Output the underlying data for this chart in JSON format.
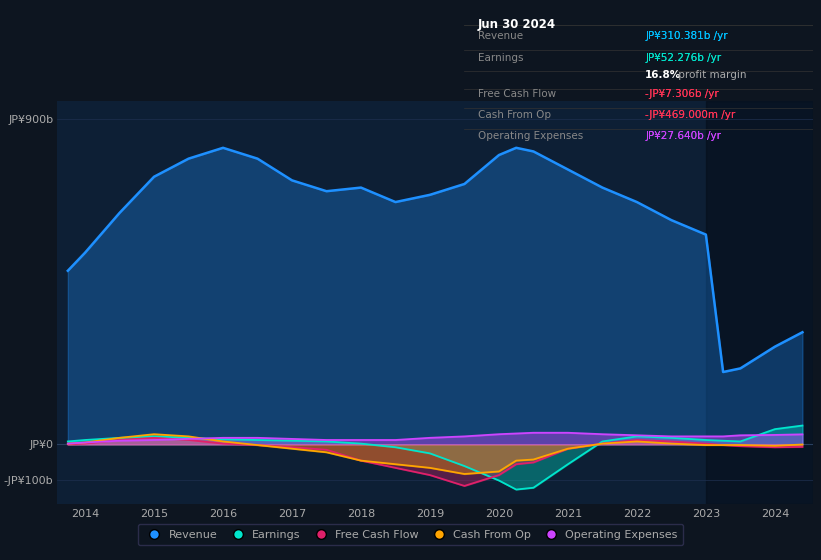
{
  "bg_color": "#0d1520",
  "plot_bg_color": "#0d1f35",
  "title_box_bg": "#000000",
  "title_box_border": "#333333",
  "years": [
    2013.75,
    2014.0,
    2014.5,
    2015.0,
    2015.5,
    2016.0,
    2016.5,
    2017.0,
    2017.5,
    2018.0,
    2018.5,
    2019.0,
    2019.5,
    2020.0,
    2020.25,
    2020.5,
    2021.0,
    2021.5,
    2022.0,
    2022.5,
    2023.0,
    2023.25,
    2023.5,
    2024.0,
    2024.4
  ],
  "revenue": [
    480,
    530,
    640,
    740,
    790,
    820,
    790,
    730,
    700,
    710,
    670,
    690,
    720,
    800,
    820,
    810,
    760,
    710,
    670,
    620,
    580,
    200,
    210,
    270,
    310
  ],
  "earnings": [
    8,
    12,
    18,
    22,
    18,
    14,
    12,
    10,
    8,
    2,
    -8,
    -25,
    -60,
    -100,
    -125,
    -120,
    -55,
    8,
    22,
    18,
    12,
    10,
    8,
    42,
    52
  ],
  "free_cash_flow": [
    0,
    2,
    12,
    18,
    12,
    2,
    -2,
    -8,
    -15,
    -45,
    -65,
    -85,
    -115,
    -85,
    -55,
    -50,
    -12,
    2,
    12,
    8,
    2,
    -2,
    -5,
    -8,
    -7
  ],
  "cash_from_op": [
    2,
    5,
    18,
    28,
    22,
    8,
    -2,
    -12,
    -22,
    -45,
    -55,
    -65,
    -82,
    -75,
    -45,
    -42,
    -12,
    2,
    8,
    2,
    -2,
    -2,
    -2,
    -4,
    -0.5
  ],
  "operating_expenses": [
    2,
    5,
    10,
    12,
    15,
    18,
    18,
    15,
    12,
    12,
    12,
    18,
    22,
    28,
    30,
    32,
    32,
    28,
    25,
    22,
    22,
    22,
    25,
    26,
    27.64
  ],
  "colors": {
    "revenue": "#1e90ff",
    "earnings": "#00e5cc",
    "free_cash_flow": "#e0206a",
    "cash_from_op": "#ffa500",
    "operating_expenses": "#cc44ff"
  },
  "ylim_top": 950,
  "ylim_bottom": -165,
  "yticks_labels": [
    "JP¥900b",
    "JP¥0",
    "-JP¥100b"
  ],
  "yticks_values": [
    900,
    0,
    -100
  ],
  "xlim_left": 2013.6,
  "xlim_right": 2024.55,
  "xticks": [
    2014,
    2015,
    2016,
    2017,
    2018,
    2019,
    2020,
    2021,
    2022,
    2023,
    2024
  ],
  "shaded_start": 2023.0,
  "legend": [
    {
      "label": "Revenue",
      "color": "#1e90ff"
    },
    {
      "label": "Earnings",
      "color": "#00e5cc"
    },
    {
      "label": "Free Cash Flow",
      "color": "#e0206a"
    },
    {
      "label": "Cash From Op",
      "color": "#ffa500"
    },
    {
      "label": "Operating Expenses",
      "color": "#cc44ff"
    }
  ],
  "infobox": {
    "date": "Jun 30 2024",
    "rows": [
      {
        "label": "Revenue",
        "value": "JP¥310.381b /yr",
        "value_color": "#00bfff",
        "bold_prefix": ""
      },
      {
        "label": "Earnings",
        "value": "JP¥52.276b /yr",
        "value_color": "#00e5cc",
        "bold_prefix": ""
      },
      {
        "label": "",
        "value": "16.8%",
        "value_color": "#ffffff",
        "suffix": " profit margin"
      },
      {
        "label": "Free Cash Flow",
        "value": "-JP¥7.306b /yr",
        "value_color": "#ff3355",
        "bold_prefix": ""
      },
      {
        "label": "Cash From Op",
        "value": "-JP¥469.000m /yr",
        "value_color": "#ff3355",
        "bold_prefix": ""
      },
      {
        "label": "Operating Expenses",
        "value": "JP¥27.640b /yr",
        "value_color": "#cc44ff",
        "bold_prefix": ""
      }
    ]
  }
}
